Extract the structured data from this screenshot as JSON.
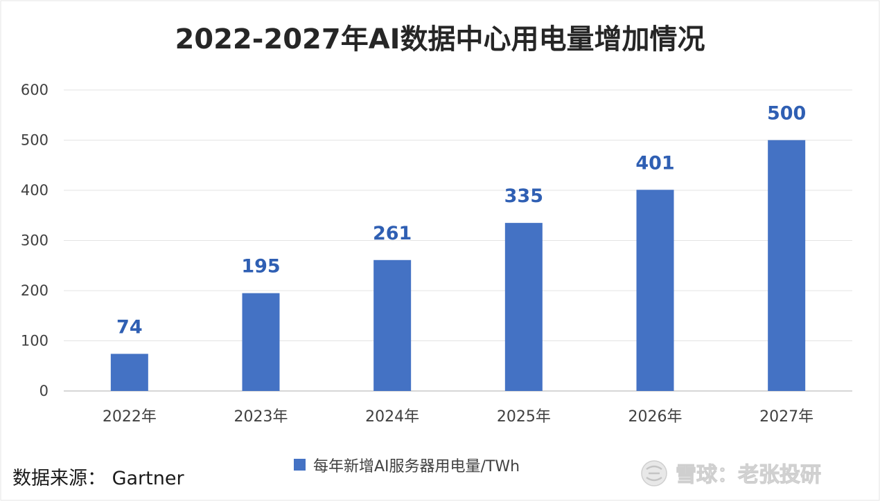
{
  "chart_data": {
    "type": "bar",
    "title": "2022-2027年AI数据中心用电量增加情况",
    "categories": [
      "2022年",
      "2023年",
      "2024年",
      "2025年",
      "2026年",
      "2027年"
    ],
    "series": [
      {
        "name": "每年新增AI服务器用电量/TWh",
        "values": [
          74,
          195,
          261,
          335,
          401,
          500
        ],
        "color": "#4472c4"
      }
    ],
    "data_label_color": "#2f5fb3",
    "yticks": [
      0,
      100,
      200,
      300,
      400,
      500,
      600
    ],
    "ylim": [
      0,
      600
    ],
    "grid": true,
    "legend_position": "bottom",
    "xlabel": "",
    "ylabel": ""
  },
  "source": "数据来源：  Gartner",
  "watermark": {
    "icon": "snowball-logo-icon",
    "text": "雪球：老张投研"
  }
}
